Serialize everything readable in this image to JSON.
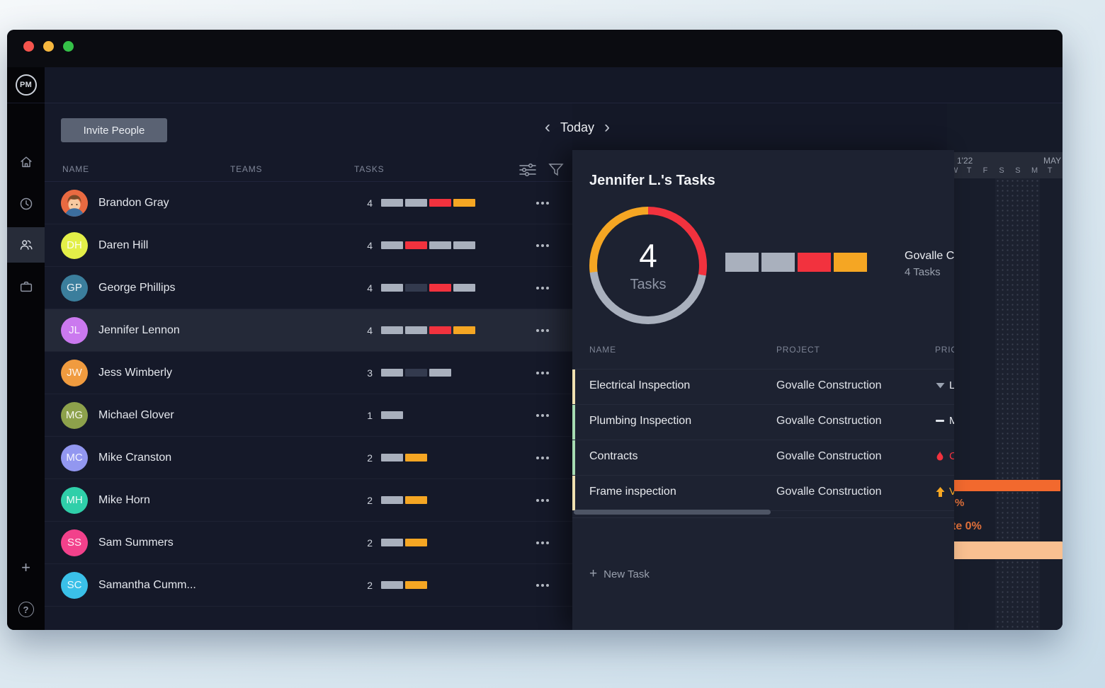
{
  "sidebar": {
    "logo_text": "PM",
    "nav_icons": [
      "home-icon",
      "clock-icon",
      "team-icon",
      "portfolio-icon"
    ],
    "active_icon": "team-icon",
    "add_glyph": "+",
    "help_glyph": "?"
  },
  "header": {
    "invite_button": "Invite People",
    "date_nav": {
      "prev": "‹",
      "label": "Today",
      "next": "›"
    }
  },
  "people_table": {
    "columns": [
      "NAME",
      "TEAMS",
      "TASKS"
    ],
    "rows": [
      {
        "avatar": "photo",
        "avatar_color": "#e96a41",
        "initials": "",
        "name": "Brandon Gray",
        "count": "4",
        "bars": [
          "gray",
          "gray",
          "red",
          "orange"
        ],
        "selected": false
      },
      {
        "avatar": "initials",
        "avatar_color": "#e3ef48",
        "initials": "DH",
        "name": "Daren Hill",
        "count": "4",
        "bars": [
          "gray",
          "red",
          "gray",
          "gray"
        ],
        "selected": false
      },
      {
        "avatar": "initials",
        "avatar_color": "#3b7e9c",
        "initials": "GP",
        "name": "George Phillips",
        "count": "4",
        "bars": [
          "gray",
          "dark",
          "red",
          "gray"
        ],
        "selected": false
      },
      {
        "avatar": "initials",
        "avatar_color": "#cb79ef",
        "initials": "JL",
        "name": "Jennifer Lennon",
        "count": "4",
        "bars": [
          "gray",
          "gray",
          "red",
          "orange"
        ],
        "selected": true
      },
      {
        "avatar": "initials",
        "avatar_color": "#f09b3f",
        "initials": "JW",
        "name": "Jess Wimberly",
        "count": "3",
        "bars": [
          "gray",
          "dark",
          "gray"
        ],
        "selected": false
      },
      {
        "avatar": "initials",
        "avatar_color": "#8da14b",
        "initials": "MG",
        "name": "Michael Glover",
        "count": "1",
        "bars": [
          "gray"
        ],
        "selected": false
      },
      {
        "avatar": "initials",
        "avatar_color": "#9297f0",
        "initials": "MC",
        "name": "Mike Cranston",
        "count": "2",
        "bars": [
          "gray",
          "orange"
        ],
        "selected": false
      },
      {
        "avatar": "initials",
        "avatar_color": "#2fcfa9",
        "initials": "MH",
        "name": "Mike Horn",
        "count": "2",
        "bars": [
          "gray",
          "orange"
        ],
        "selected": false
      },
      {
        "avatar": "initials",
        "avatar_color": "#f2418b",
        "initials": "SS",
        "name": "Sam Summers",
        "count": "2",
        "bars": [
          "gray",
          "orange"
        ],
        "selected": false
      },
      {
        "avatar": "initials",
        "avatar_color": "#3ac0e8",
        "initials": "SC",
        "name": "Samantha Cumm...",
        "count": "2",
        "bars": [
          "gray",
          "orange"
        ],
        "selected": false
      }
    ]
  },
  "panel": {
    "title": "Jennifer L.'s Tasks",
    "donut": {
      "value": "4",
      "label": "Tasks",
      "segments": [
        {
          "color": "red",
          "deg": 100
        },
        {
          "color": "gray",
          "deg": 163
        },
        {
          "color": "orange",
          "deg": 97
        }
      ]
    },
    "blocks": [
      "gray",
      "gray",
      "red",
      "orange"
    ],
    "project_summary": {
      "name": "Govalle C",
      "count": "4 Tasks"
    },
    "table": {
      "columns": [
        "NAME",
        "PROJECT",
        "PRIO"
      ],
      "rows": [
        {
          "name": "Electrical Inspection",
          "project": "Govalle Construction",
          "strip": "cream",
          "priority_icon": "low",
          "priority_label": "L",
          "priority_color": "#e8eaef"
        },
        {
          "name": "Plumbing Inspection",
          "project": "Govalle Construction",
          "strip": "green",
          "priority_icon": "medium",
          "priority_label": "M",
          "priority_color": "#e8eaef"
        },
        {
          "name": "Contracts",
          "project": "Govalle Construction",
          "strip": "green",
          "priority_icon": "critical",
          "priority_label": "C",
          "priority_color": "#f2323e"
        },
        {
          "name": "Frame inspection",
          "project": "Govalle Construction",
          "strip": "cream",
          "priority_icon": "high",
          "priority_label": "V",
          "priority_color": "#f5a623"
        }
      ]
    },
    "new_task_label": "New Task",
    "new_task_plus": "+"
  },
  "gantt": {
    "month_left": "1'22",
    "month_right": "MAY",
    "days": [
      "W",
      "T",
      "F",
      "S",
      "S",
      "M",
      "T"
    ],
    "percent_label": "%",
    "complete_label": "te 0%"
  },
  "colors": {
    "bars": {
      "gray": "#a9b0bd",
      "dark": "#333a4e",
      "red": "#f2323e",
      "orange": "#f5a623"
    },
    "strips": {
      "cream": "#efe0b0",
      "green": "#a6dbb2"
    },
    "gantt_bar_solid": "#f2692e",
    "gantt_bar_light": "#f9c091"
  }
}
